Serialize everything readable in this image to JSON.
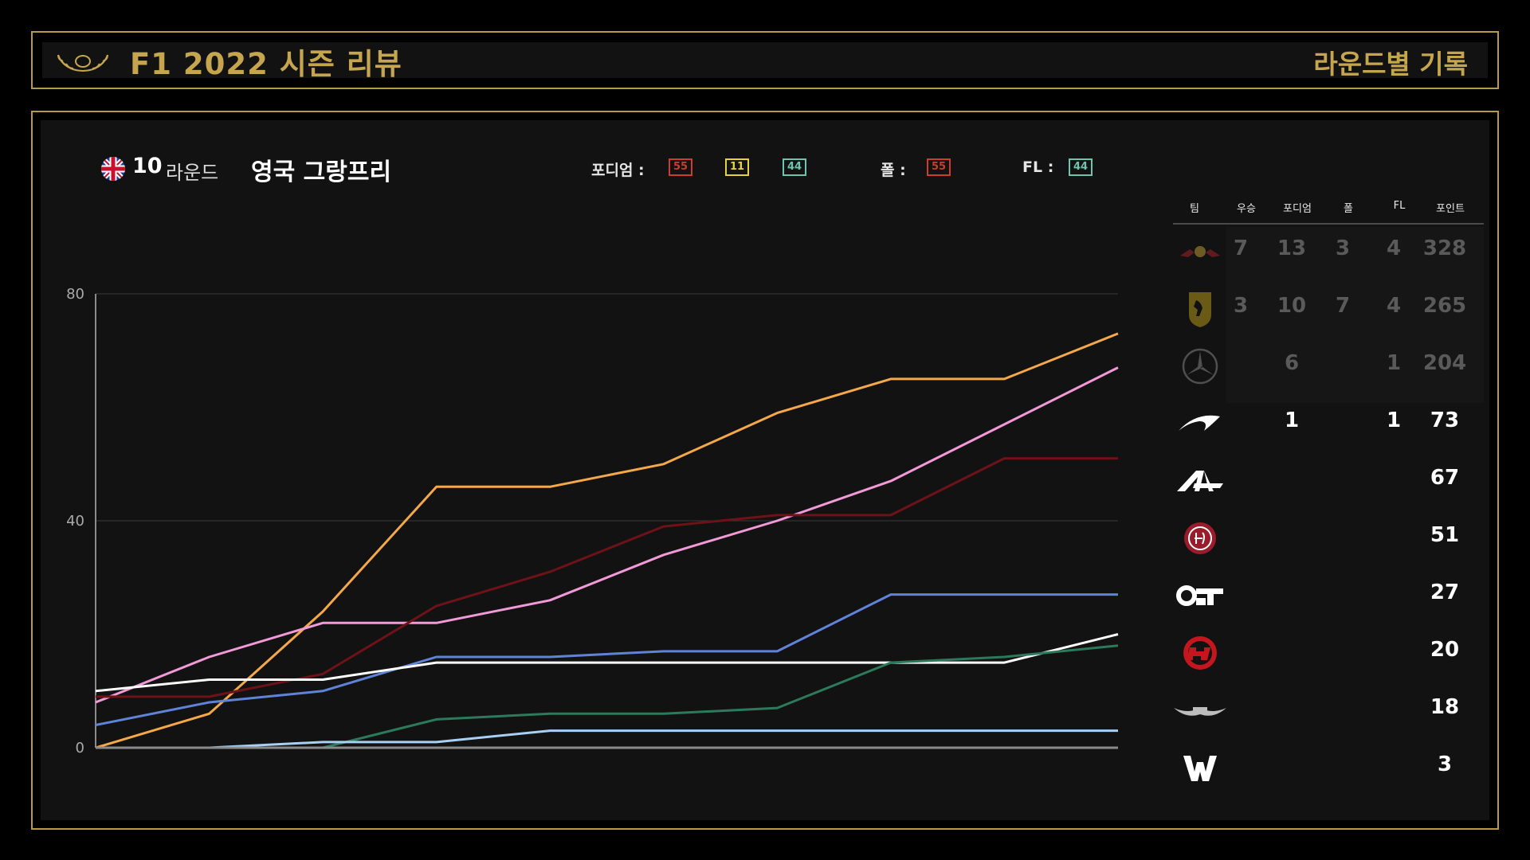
{
  "header": {
    "title": "F1 2022 시즌 리뷰",
    "subtitle": "라운드별 기록"
  },
  "race": {
    "round_number": "10",
    "round_word": "라운드",
    "name": "영국 그랑프리",
    "podium_label": "포디엄 :",
    "podium": [
      {
        "number": "55",
        "color": "#d23a2a"
      },
      {
        "number": "11",
        "color": "#e6d23a"
      },
      {
        "number": "44",
        "color": "#6fc4ae"
      }
    ],
    "pole_label": "폴 :",
    "pole": {
      "number": "55",
      "color": "#d23a2a"
    },
    "fl_label": "FL :",
    "fl": {
      "number": "44",
      "color": "#6fc4ae"
    }
  },
  "standings": {
    "headers": [
      "팀",
      "우승",
      "포디엄",
      "폴",
      "FL",
      "포인트"
    ],
    "teams": [
      {
        "logo": "red-bull-logo",
        "wins": "7",
        "podiums": "13",
        "poles": "3",
        "fl": "4",
        "points": "328",
        "dim": true
      },
      {
        "logo": "ferrari-logo",
        "wins": "3",
        "podiums": "10",
        "poles": "7",
        "fl": "4",
        "points": "265",
        "dim": true
      },
      {
        "logo": "mercedes-logo",
        "wins": "",
        "podiums": "6",
        "poles": "",
        "fl": "1",
        "points": "204",
        "dim": true
      },
      {
        "logo": "mclaren-logo",
        "wins": "",
        "podiums": "1",
        "poles": "",
        "fl": "1",
        "points": "73",
        "dim": false
      },
      {
        "logo": "alpine-logo",
        "wins": "",
        "podiums": "",
        "poles": "",
        "fl": "",
        "points": "67",
        "dim": false
      },
      {
        "logo": "alfa-romeo-logo",
        "wins": "",
        "podiums": "",
        "poles": "",
        "fl": "",
        "points": "51",
        "dim": false
      },
      {
        "logo": "alphatauri-logo",
        "wins": "",
        "podiums": "",
        "poles": "",
        "fl": "",
        "points": "27",
        "dim": false
      },
      {
        "logo": "haas-logo",
        "wins": "",
        "podiums": "",
        "poles": "",
        "fl": "",
        "points": "20",
        "dim": false
      },
      {
        "logo": "aston-martin-logo",
        "wins": "",
        "podiums": "",
        "poles": "",
        "fl": "",
        "points": "18",
        "dim": false
      },
      {
        "logo": "williams-logo",
        "wins": "",
        "podiums": "",
        "poles": "",
        "fl": "",
        "points": "3",
        "dim": false
      }
    ]
  },
  "chart_data": {
    "type": "line",
    "x": [
      1,
      2,
      3,
      4,
      5,
      6,
      7,
      8,
      9,
      10
    ],
    "ylim": [
      0,
      80
    ],
    "yticks": [
      "0",
      "40",
      "80"
    ],
    "grid": true,
    "series": [
      {
        "color": "#f4a84a",
        "values": [
          0,
          6,
          24,
          46,
          46,
          50,
          59,
          65,
          65,
          73
        ]
      },
      {
        "color": "#f29ad8",
        "values": [
          8,
          16,
          22,
          22,
          26,
          34,
          40,
          47,
          57,
          67
        ]
      },
      {
        "color": "#6e1218",
        "values": [
          9,
          9,
          13,
          25,
          31,
          39,
          41,
          41,
          51,
          51
        ]
      },
      {
        "color": "#5f83d8",
        "values": [
          4,
          8,
          10,
          16,
          16,
          17,
          17,
          27,
          27,
          27
        ]
      },
      {
        "color": "#ffffff",
        "values": [
          10,
          12,
          12,
          15,
          15,
          15,
          15,
          15,
          15,
          20
        ]
      },
      {
        "color": "#2c7a5c",
        "values": [
          0,
          0,
          0,
          5,
          6,
          6,
          7,
          15,
          16,
          18
        ]
      },
      {
        "color": "#a8d0f5",
        "values": [
          0,
          0,
          1,
          1,
          3,
          3,
          3,
          3,
          3,
          3
        ]
      }
    ]
  }
}
